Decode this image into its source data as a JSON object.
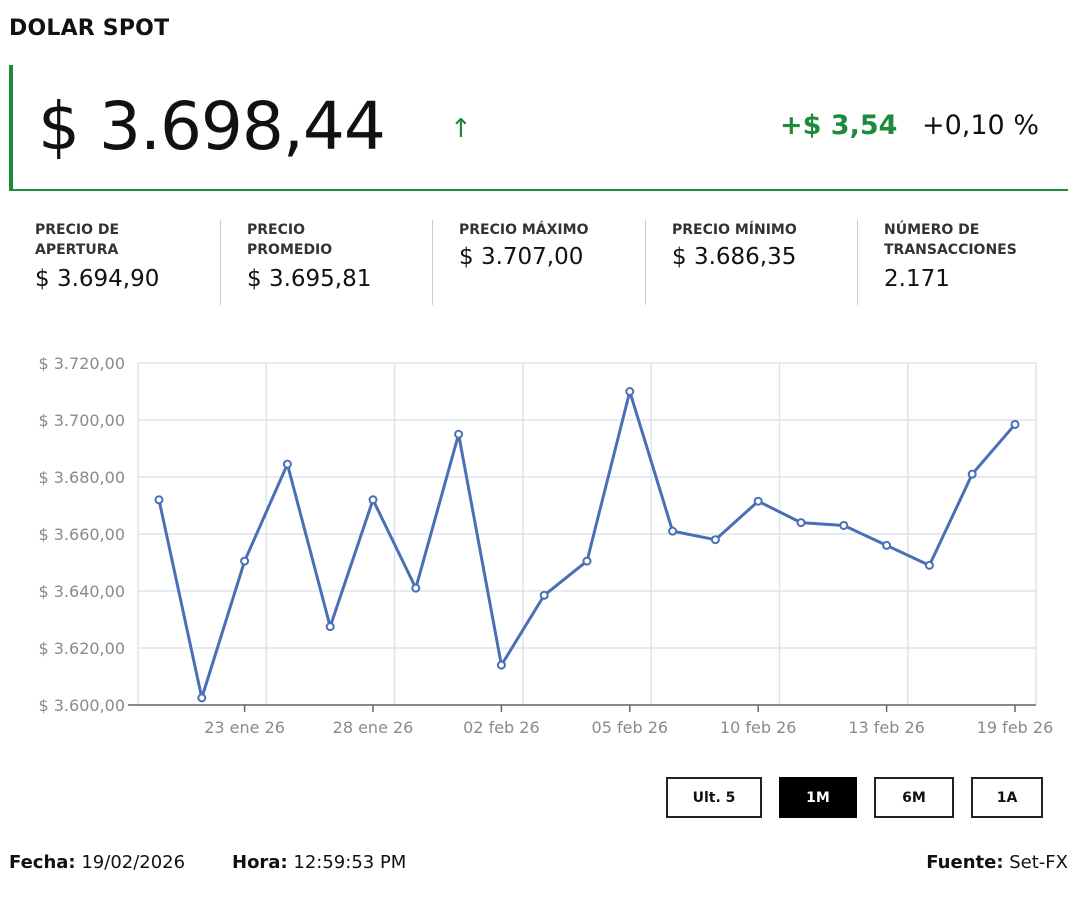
{
  "title": "DOLAR SPOT",
  "price": "$ 3.698,44",
  "trend_icon": "arrow-up-icon",
  "change": "+$ 3,54",
  "change_pct": "+0,10 %",
  "colors": {
    "positive": "#1e8a3c",
    "line": "#4a6fb5",
    "grid": "#dde3ee"
  },
  "stats": [
    {
      "label": "PRECIO DE APERTURA",
      "value": "$ 3.694,90"
    },
    {
      "label": "PRECIO PROMEDIO",
      "value": "$ 3.695,81"
    },
    {
      "label": "PRECIO MÁXIMO",
      "value": "$ 3.707,00"
    },
    {
      "label": "PRECIO MÍNIMO",
      "value": "$ 3.686,35"
    },
    {
      "label": "NÚMERO DE TRANSACCIONES",
      "value": "2.171"
    }
  ],
  "chart_data": {
    "type": "line",
    "values": [
      3672,
      3602.5,
      3650.5,
      3684.5,
      3627.5,
      3672,
      3641,
      3695,
      3614,
      3638.5,
      3650.5,
      3710,
      3661,
      3658,
      3671.5,
      3664,
      3663,
      3656,
      3649,
      3681,
      3698.44
    ],
    "x_ticks": [
      {
        "index": 2,
        "label": "23 ene 26"
      },
      {
        "index": 5,
        "label": "28 ene 26"
      },
      {
        "index": 8,
        "label": "02 feb 26"
      },
      {
        "index": 11,
        "label": "05 feb 26"
      },
      {
        "index": 14,
        "label": "10 feb 26"
      },
      {
        "index": 17,
        "label": "13 feb 26"
      },
      {
        "index": 20,
        "label": "19 feb 26"
      }
    ],
    "y_ticks": [
      {
        "value": 3600,
        "label": "$ 3.600,00"
      },
      {
        "value": 3620,
        "label": "$ 3.620,00"
      },
      {
        "value": 3640,
        "label": "$ 3.640,00"
      },
      {
        "value": 3660,
        "label": "$ 3.660,00"
      },
      {
        "value": 3680,
        "label": "$ 3.680,00"
      },
      {
        "value": 3700,
        "label": "$ 3.700,00"
      },
      {
        "value": 3720,
        "label": "$ 3.720,00"
      }
    ],
    "ylim": [
      3600,
      3720
    ],
    "grid": true,
    "markers": "hollow-circle"
  },
  "ranges": [
    {
      "label": "Ult. 5",
      "active": false
    },
    {
      "label": "1M",
      "active": true
    },
    {
      "label": "6M",
      "active": false
    },
    {
      "label": "1A",
      "active": false
    }
  ],
  "footer": {
    "date_label": "Fecha:",
    "date": "19/02/2026",
    "time_label": "Hora:",
    "time": "12:59:53 PM",
    "source_label": "Fuente:",
    "source": "Set-FX"
  }
}
